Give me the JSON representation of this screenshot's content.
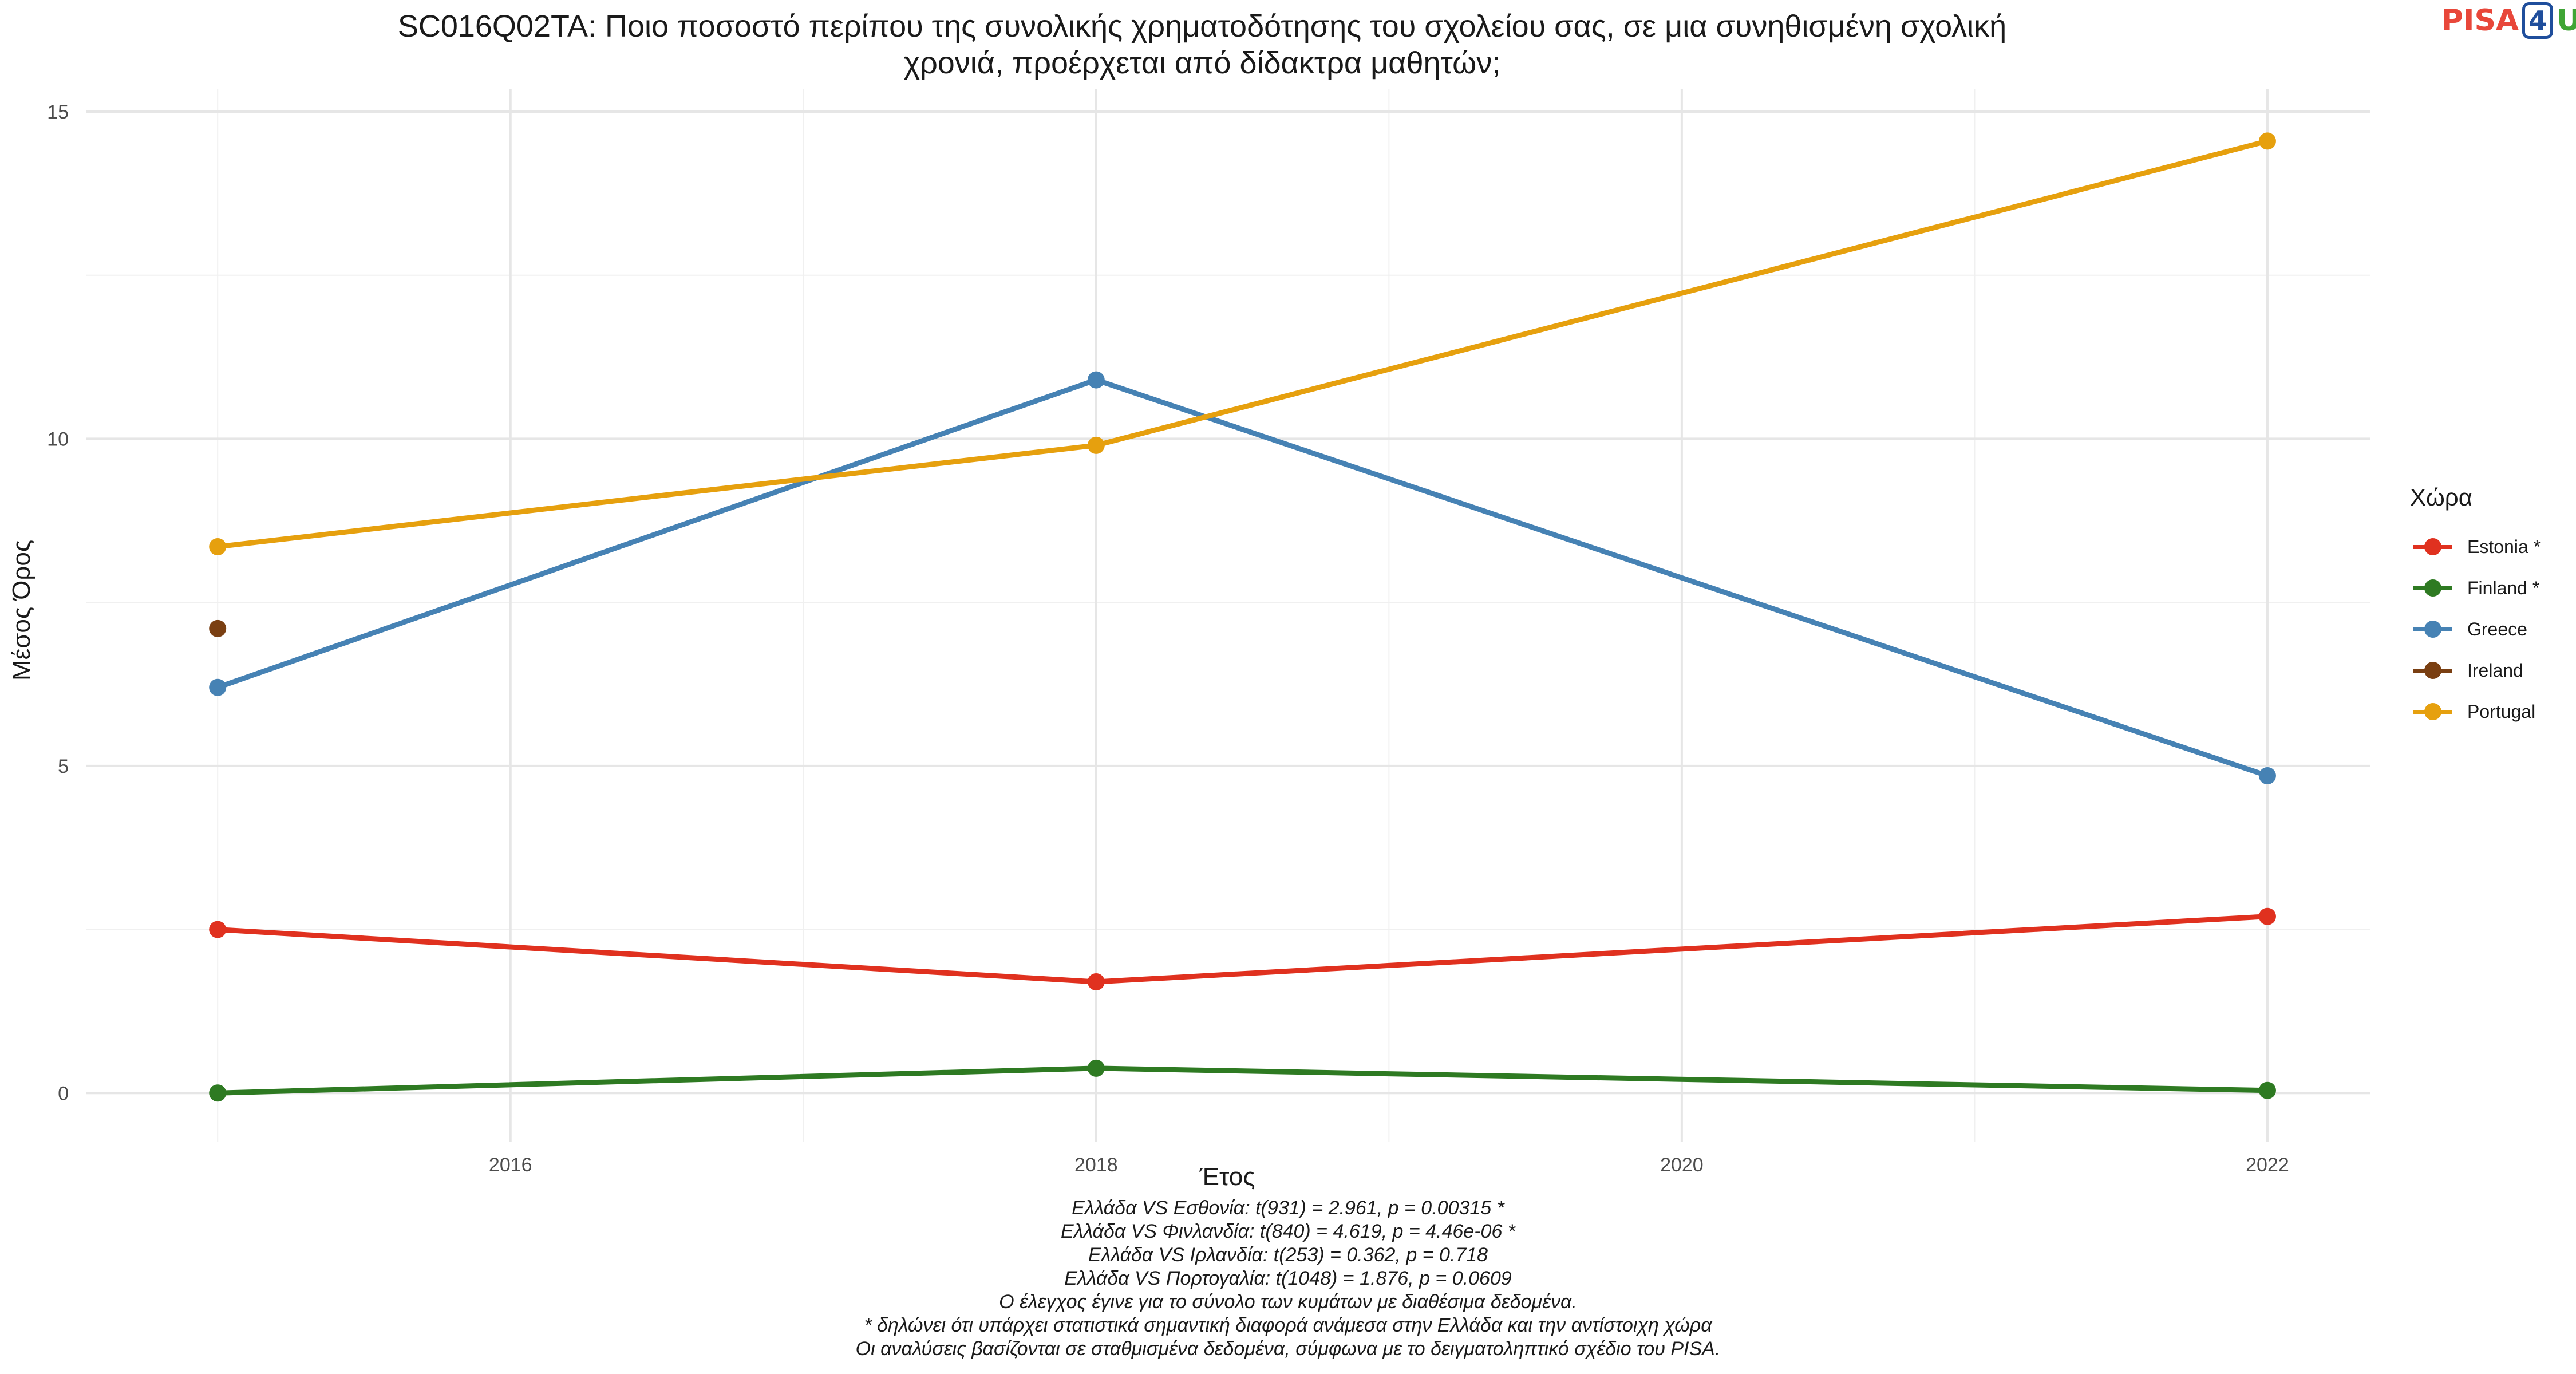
{
  "title": {
    "line1": "SC016Q02TA: Ποιο ποσοστό περίπου της συνολικής χρηματοδότησης του σχολείου σας, σε μια συνηθισμένη σχολική",
    "line2": "χρονιά, προέρχεται από δίδακτρα μαθητών;"
  },
  "logo": {
    "part1": "PISA",
    "part2": "4",
    "part3": "U"
  },
  "chart_data": {
    "type": "line",
    "xlabel": "Έτος",
    "ylabel": "Μέσος Όρος",
    "xlim": [
      2014.55,
      2022.35
    ],
    "ylim": [
      -0.75,
      15.35
    ],
    "x_ticks": [
      2016,
      2018,
      2020,
      2022
    ],
    "y_ticks": [
      0,
      5,
      10,
      15
    ],
    "grid": true,
    "legend_position": "right",
    "legend_title": "Χώρα",
    "series": [
      {
        "name": "Estonia *",
        "color": "#e0311f",
        "x": [
          2015,
          2018,
          2022
        ],
        "y": [
          2.5,
          1.7,
          2.7
        ]
      },
      {
        "name": "Finland *",
        "color": "#2e7a22",
        "x": [
          2015,
          2018,
          2022
        ],
        "y": [
          0.0,
          0.38,
          0.04
        ]
      },
      {
        "name": "Greece",
        "color": "#4682b4",
        "x": [
          2015,
          2018,
          2022
        ],
        "y": [
          6.2,
          10.9,
          4.85
        ]
      },
      {
        "name": "Ireland",
        "color": "#7a3f12",
        "x": [
          2015
        ],
        "y": [
          7.1
        ]
      },
      {
        "name": "Portugal",
        "color": "#e6a00e",
        "x": [
          2015,
          2018,
          2022
        ],
        "y": [
          8.35,
          9.9,
          14.55
        ]
      }
    ]
  },
  "notes": [
    "Ελλάδα VS Εσθονία: t(931) = 2.961, p = 0.00315 *",
    "Ελλάδα VS Φινλανδία: t(840) = 4.619, p = 4.46e-06 *",
    "Ελλάδα VS Ιρλανδία: t(253) = 0.362, p = 0.718",
    "Ελλάδα VS Πορτογαλία: t(1048) = 1.876, p = 0.0609",
    "Ο έλεγχος έγινε για το σύνολο των κυμάτων με διαθέσιμα δεδομένα.",
    "* δηλώνει ότι υπάρχει στατιστικά σημαντική διαφορά ανάμεσα στην Ελλάδα και την αντίστοιχη χώρα",
    "Οι αναλύσεις βασίζονται σε σταθμισμένα δεδομένα, σύμφωνα με το δειγματοληπτικό σχέδιο του PISA."
  ]
}
